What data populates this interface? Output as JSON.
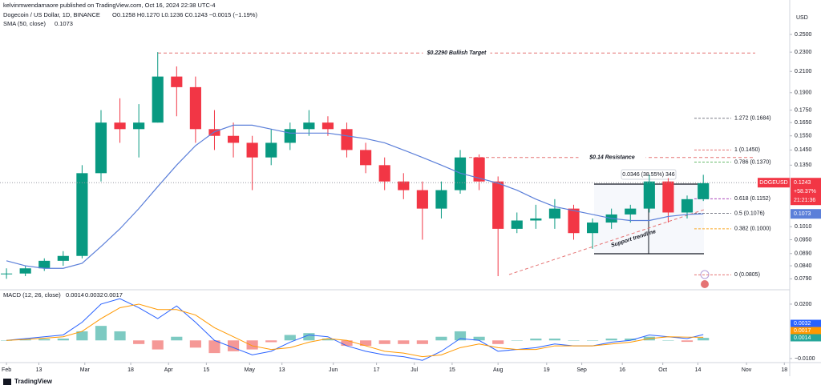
{
  "header": {
    "publisher": "kelvinmwendamaore published on TradingView.com, Oct 16, 2024 22:38 UTC-4",
    "symbol": "Dogecoin / US Dollar, 1D, BINANCE",
    "ohlc": "O0.1258 H0.1270 L0.1236 C0.1243 −0.0015 (−1.19%)"
  },
  "footer": {
    "brand": "TradingView"
  },
  "chart_data": {
    "type": "candlestick",
    "currency": "USD",
    "log_scale": true,
    "xlim": [
      -2.4,
      290
    ],
    "xticks": [
      {
        "value": 0,
        "label": "Feb"
      },
      {
        "value": 12,
        "label": "13"
      },
      {
        "value": 29,
        "label": "Mar"
      },
      {
        "value": 46,
        "label": "18"
      },
      {
        "value": 60,
        "label": "Apr"
      },
      {
        "value": 74,
        "label": "15"
      },
      {
        "value": 90,
        "label": "May"
      },
      {
        "value": 102,
        "label": "13"
      },
      {
        "value": 121,
        "label": "Jun"
      },
      {
        "value": 137,
        "label": "17"
      },
      {
        "value": 151,
        "label": "Jul"
      },
      {
        "value": 165,
        "label": "15"
      },
      {
        "value": 182,
        "label": "Aug"
      },
      {
        "value": 200,
        "label": "19"
      },
      {
        "value": 213,
        "label": "Sep"
      },
      {
        "value": 228,
        "label": "16"
      },
      {
        "value": 243,
        "label": "Oct"
      },
      {
        "value": 256,
        "label": "14"
      },
      {
        "value": 274,
        "label": "Nov"
      },
      {
        "value": 288,
        "label": "18"
      }
    ],
    "ylim": [
      0.0756,
      0.2577
    ],
    "yticks": [
      {
        "value": 0.25,
        "label": "0.2500"
      },
      {
        "value": 0.23,
        "label": "0.2300"
      },
      {
        "value": 0.21,
        "label": "0.2100"
      },
      {
        "value": 0.19,
        "label": "0.1900"
      },
      {
        "value": 0.175,
        "label": "0.1750"
      },
      {
        "value": 0.165,
        "label": "0.1650"
      },
      {
        "value": 0.155,
        "label": "0.1550"
      },
      {
        "value": 0.145,
        "label": "0.1450"
      },
      {
        "value": 0.135,
        "label": "0.1350"
      },
      {
        "value": 0.101,
        "label": "0.1010"
      },
      {
        "value": 0.095,
        "label": "0.0950"
      },
      {
        "value": 0.089,
        "label": "0.0890"
      },
      {
        "value": 0.084,
        "label": "0.0840"
      },
      {
        "value": 0.079,
        "label": "0.0790"
      }
    ],
    "candles": {
      "up_color": "#089981",
      "down_color": "#f23645",
      "x": [
        0,
        7,
        14,
        21,
        28,
        35,
        42,
        49,
        56,
        63,
        70,
        77,
        84,
        91,
        98,
        105,
        112,
        119,
        126,
        133,
        140,
        147,
        154,
        161,
        168,
        175,
        182,
        189,
        196,
        203,
        210,
        217,
        224,
        231,
        238,
        245,
        252,
        258
      ],
      "open": [
        0.081,
        0.081,
        0.083,
        0.086,
        0.088,
        0.13,
        0.165,
        0.16,
        0.165,
        0.205,
        0.195,
        0.16,
        0.155,
        0.15,
        0.14,
        0.15,
        0.16,
        0.165,
        0.16,
        0.145,
        0.135,
        0.125,
        0.12,
        0.11,
        0.12,
        0.14,
        0.125,
        0.1,
        0.104,
        0.105,
        0.11,
        0.098,
        0.103,
        0.107,
        0.11,
        0.125,
        0.108,
        0.115
      ],
      "high": [
        0.083,
        0.084,
        0.087,
        0.09,
        0.135,
        0.175,
        0.185,
        0.18,
        0.23,
        0.215,
        0.205,
        0.175,
        0.165,
        0.155,
        0.16,
        0.165,
        0.175,
        0.17,
        0.165,
        0.15,
        0.14,
        0.13,
        0.125,
        0.125,
        0.145,
        0.142,
        0.128,
        0.108,
        0.112,
        0.115,
        0.112,
        0.105,
        0.11,
        0.112,
        0.129,
        0.127,
        0.117,
        0.129
      ],
      "low": [
        0.079,
        0.08,
        0.082,
        0.084,
        0.087,
        0.125,
        0.15,
        0.14,
        0.165,
        0.17,
        0.15,
        0.145,
        0.14,
        0.12,
        0.135,
        0.145,
        0.155,
        0.155,
        0.14,
        0.13,
        0.12,
        0.115,
        0.095,
        0.105,
        0.118,
        0.12,
        0.08,
        0.098,
        0.1,
        0.1,
        0.095,
        0.091,
        0.1,
        0.103,
        0.108,
        0.103,
        0.105,
        0.114
      ],
      "close": [
        0.081,
        0.083,
        0.086,
        0.088,
        0.13,
        0.165,
        0.16,
        0.165,
        0.205,
        0.195,
        0.16,
        0.155,
        0.15,
        0.14,
        0.15,
        0.16,
        0.165,
        0.16,
        0.145,
        0.135,
        0.125,
        0.12,
        0.11,
        0.12,
        0.14,
        0.125,
        0.1,
        0.104,
        0.105,
        0.11,
        0.098,
        0.103,
        0.107,
        0.11,
        0.125,
        0.108,
        0.115,
        0.124
      ]
    },
    "sma": {
      "name": "SMA (50, close)",
      "value_label": "0.1073",
      "color": "#5b7fd9",
      "values": [
        0.086,
        0.084,
        0.083,
        0.083,
        0.085,
        0.092,
        0.1,
        0.11,
        0.122,
        0.135,
        0.148,
        0.158,
        0.163,
        0.163,
        0.16,
        0.157,
        0.157,
        0.157,
        0.155,
        0.153,
        0.15,
        0.145,
        0.14,
        0.135,
        0.13,
        0.127,
        0.124,
        0.12,
        0.115,
        0.111,
        0.109,
        0.107,
        0.105,
        0.104,
        0.104,
        0.106,
        0.107,
        0.1073
      ]
    },
    "current_price": {
      "symbol": "DOGEUSD",
      "value": 0.1243,
      "label": "0.1243",
      "change": "+58.37%",
      "countdown": "21:21:36"
    },
    "annotations": [
      {
        "text": "$0.2290 Bullish Target",
        "value": 0.229
      },
      {
        "text": "$0.14 Resistance",
        "value": 0.14
      }
    ],
    "fib_levels": [
      {
        "value": 0.1684,
        "label": "1.272 (0.1684)",
        "color": "#787b86"
      },
      {
        "value": 0.145,
        "label": "1 (0.1450)",
        "color": "#e57373"
      },
      {
        "value": 0.137,
        "label": "0.786 (0.1370)",
        "color": "#66bb6a"
      },
      {
        "value": 0.1152,
        "label": "0.618 (0.1152)",
        "color": "#ab47bc"
      },
      {
        "value": 0.1076,
        "label": "0.5 (0.1076)",
        "color": "#787b86"
      },
      {
        "value": 0.1,
        "label": "0.382 (0.1000)",
        "color": "#f9a825"
      },
      {
        "value": 0.0805,
        "label": "0 (0.0805)",
        "color": "#e57373"
      }
    ],
    "measure": {
      "label": "0.0346 (38.55%) 346"
    },
    "trendline": {
      "label": "Support trendline"
    },
    "macd": {
      "name": "MACD (12, 26, close)",
      "ylim": [
        -0.0118,
        0.0266
      ],
      "yticks": [
        {
          "value": 0.02,
          "label": "0.0200"
        },
        {
          "value": -0.01,
          "label": "−0.0100"
        }
      ],
      "histogram": {
        "value_label": "0.0014",
        "color_up": "#26a69a",
        "color_down": "#ef5350",
        "values": [
          0,
          0.0005,
          0.0008,
          0.001,
          0.005,
          0.008,
          0.005,
          -0.002,
          -0.005,
          0.002,
          -0.004,
          -0.007,
          -0.006,
          -0.005,
          -0.001,
          0.003,
          0.004,
          0.001,
          -0.003,
          -0.003,
          -0.002,
          -0.002,
          -0.002,
          0.002,
          0.005,
          0.002,
          -0.002,
          0,
          0.001,
          0.001,
          0,
          0,
          0.001,
          0.001,
          0.002,
          0,
          -0.0008,
          0.0014
        ]
      },
      "macd_line": {
        "value_label": "0.0032",
        "color": "#2962ff",
        "values": [
          0,
          0.001,
          0.002,
          0.003,
          0.01,
          0.02,
          0.023,
          0.018,
          0.012,
          0.019,
          0.01,
          0,
          -0.004,
          -0.008,
          -0.006,
          -0.001,
          0.003,
          0.002,
          -0.003,
          -0.006,
          -0.008,
          -0.009,
          -0.011,
          -0.006,
          0.001,
          0,
          -0.006,
          -0.005,
          -0.004,
          -0.002,
          -0.003,
          -0.003,
          -0.001,
          0,
          0.003,
          0.002,
          0.001,
          0.0032
        ]
      },
      "signal": {
        "value_label": "0.0017",
        "color": "#ff9800",
        "values": [
          0,
          0.0005,
          0.0012,
          0.002,
          0.005,
          0.012,
          0.018,
          0.02,
          0.017,
          0.017,
          0.014,
          0.007,
          0.002,
          -0.003,
          -0.005,
          -0.004,
          -0.001,
          0.001,
          0,
          -0.003,
          -0.006,
          -0.007,
          -0.009,
          -0.008,
          -0.004,
          -0.002,
          -0.004,
          -0.005,
          -0.005,
          -0.003,
          -0.003,
          -0.003,
          -0.002,
          -0.001,
          0.001,
          0.002,
          0.0018,
          0.0017
        ]
      }
    }
  }
}
